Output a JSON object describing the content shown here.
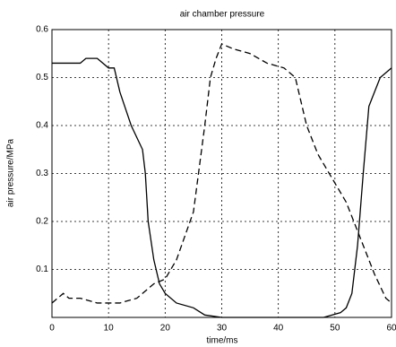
{
  "chart_data": {
    "type": "line",
    "title": "air chamber pressure",
    "xlabel": "time/ms",
    "ylabel": "air pressure/MPa",
    "xlim": [
      0,
      60
    ],
    "ylim": [
      0,
      0.6
    ],
    "xticks": [
      0,
      10,
      20,
      30,
      40,
      50,
      60
    ],
    "yticks": [
      0.1,
      0.2,
      0.3,
      0.4,
      0.5,
      0.6
    ],
    "grid": true,
    "series": [
      {
        "color": "#000000",
        "line_style": "solid",
        "x": [
          0,
          5,
          6,
          8,
          10,
          11,
          12,
          14,
          16,
          16.5,
          17,
          18,
          19,
          20,
          22,
          25,
          27,
          30,
          40,
          48,
          51,
          52,
          53,
          54,
          55,
          56,
          57,
          58,
          60
        ],
        "values": [
          0.53,
          0.53,
          0.54,
          0.54,
          0.52,
          0.52,
          0.47,
          0.4,
          0.35,
          0.3,
          0.2,
          0.12,
          0.07,
          0.05,
          0.03,
          0.02,
          0.005,
          0,
          0,
          0,
          0.01,
          0.02,
          0.05,
          0.15,
          0.3,
          0.44,
          0.47,
          0.5,
          0.52
        ]
      },
      {
        "color": "#000000",
        "line_style": "dashed",
        "x": [
          0,
          2,
          3,
          5,
          8,
          12,
          15,
          18,
          20,
          22,
          25,
          27,
          28,
          29,
          30,
          32,
          35,
          38,
          41,
          43,
          45,
          47,
          50,
          52,
          55,
          57,
          59,
          60
        ],
        "values": [
          0.03,
          0.05,
          0.04,
          0.04,
          0.03,
          0.03,
          0.04,
          0.07,
          0.08,
          0.12,
          0.22,
          0.4,
          0.5,
          0.54,
          0.57,
          0.56,
          0.55,
          0.53,
          0.52,
          0.5,
          0.4,
          0.34,
          0.28,
          0.24,
          0.15,
          0.09,
          0.04,
          0.03
        ]
      }
    ]
  }
}
